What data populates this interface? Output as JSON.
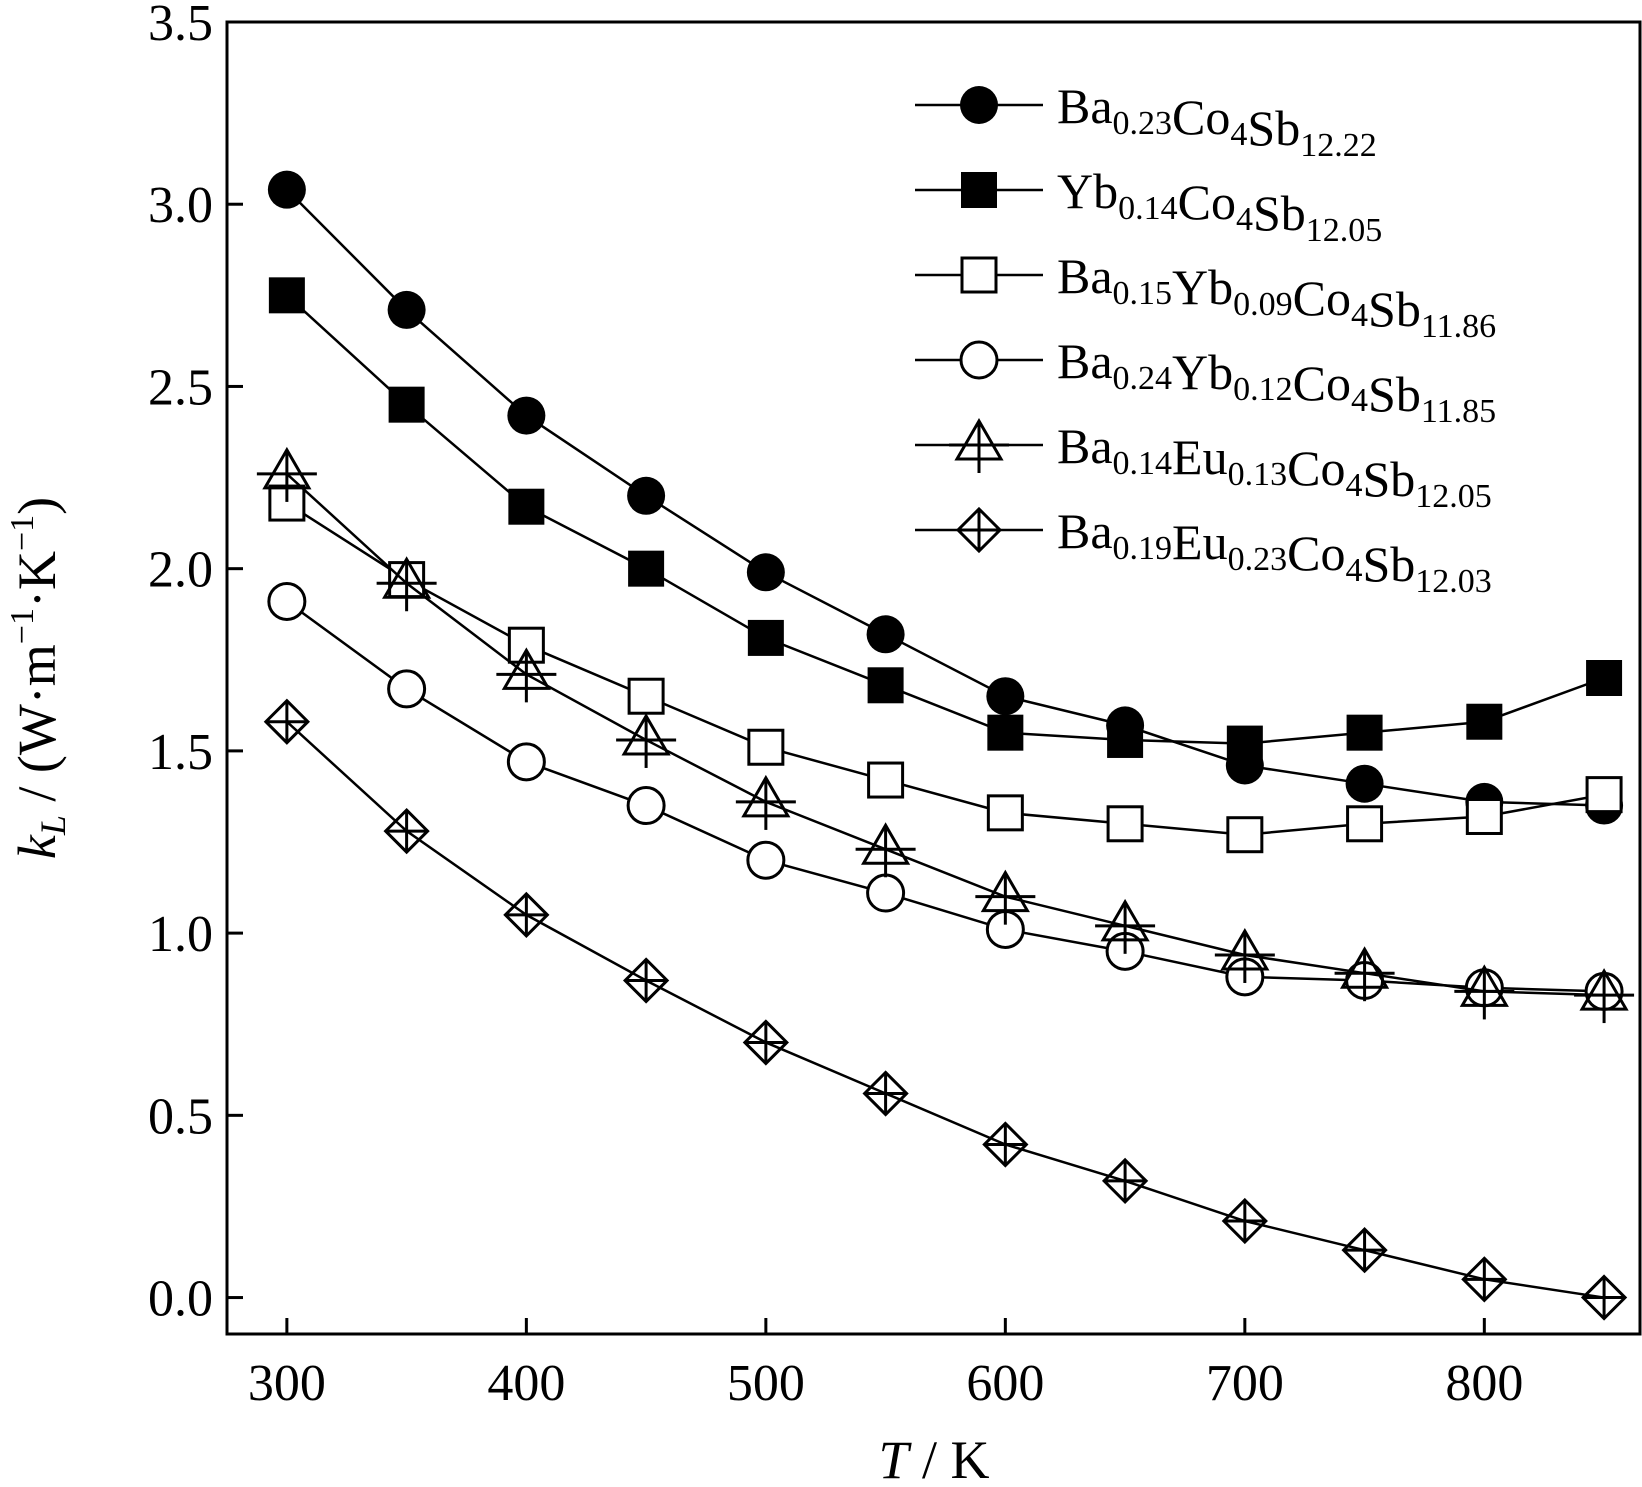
{
  "chart_data": {
    "type": "line",
    "title": "",
    "xlabel_italic": "T",
    "xlabel_rest": " / K",
    "ylabel_italic": "k",
    "ylabel_sub": "L",
    "ylabel_rest": " / (W·m",
    "ylabel_sup1": "−1",
    "ylabel_mid": "·K",
    "ylabel_sup2": "−1",
    "ylabel_end": ")",
    "xlim": [
      275,
      865
    ],
    "ylim": [
      -0.1,
      3.5
    ],
    "xticks": [
      300,
      400,
      500,
      600,
      700,
      800
    ],
    "yticks": [
      0.0,
      0.5,
      1.0,
      1.5,
      2.0,
      2.5,
      3.0,
      3.5
    ],
    "legend_position": "top-right",
    "x": [
      300,
      350,
      400,
      450,
      500,
      550,
      600,
      650,
      700,
      750,
      800,
      850
    ],
    "series": [
      {
        "marker": "filled-circle",
        "legend": {
          "a": "Ba",
          "a_sub": "0.23",
          "b": "Co",
          "b_sub": "4",
          "c": "Sb",
          "c_sub": "12.22"
        },
        "values": [
          3.04,
          2.71,
          2.42,
          2.2,
          1.99,
          1.82,
          1.65,
          1.57,
          1.46,
          1.41,
          1.36,
          1.35
        ]
      },
      {
        "marker": "filled-square",
        "legend": {
          "a": "Yb",
          "a_sub": "0.14",
          "b": "Co",
          "b_sub": "4",
          "c": "Sb",
          "c_sub": "12.05"
        },
        "values": [
          2.75,
          2.45,
          2.17,
          2.0,
          1.81,
          1.68,
          1.55,
          1.53,
          1.52,
          1.55,
          1.58,
          1.7
        ]
      },
      {
        "marker": "open-square",
        "legend": {
          "a": "Ba",
          "a_sub": "0.15",
          "b": "Yb",
          "b_sub": "0.09",
          "c": "Co",
          "c_sub": "4",
          "d": "Sb",
          "d_sub": "11.86"
        },
        "values": [
          2.18,
          1.97,
          1.79,
          1.65,
          1.51,
          1.42,
          1.33,
          1.3,
          1.27,
          1.3,
          1.32,
          1.38
        ]
      },
      {
        "marker": "open-circle",
        "legend": {
          "a": "Ba",
          "a_sub": "0.24",
          "b": "Yb",
          "b_sub": "0.12",
          "c": "Co",
          "c_sub": "4",
          "d": "Sb",
          "d_sub": "11.85"
        },
        "values": [
          1.91,
          1.67,
          1.47,
          1.35,
          1.2,
          1.11,
          1.01,
          0.95,
          0.88,
          0.87,
          0.85,
          0.84
        ]
      },
      {
        "marker": "open-triangle-cross",
        "legend": {
          "a": "Ba",
          "a_sub": "0.14",
          "b": "Eu",
          "b_sub": "0.13",
          "c": "Co",
          "c_sub": "4",
          "d": "Sb",
          "d_sub": "12.05"
        },
        "values": [
          2.26,
          1.96,
          1.71,
          1.53,
          1.36,
          1.23,
          1.1,
          1.02,
          0.94,
          0.89,
          0.84,
          0.83
        ]
      },
      {
        "marker": "open-diamond-cross",
        "legend": {
          "a": "Ba",
          "a_sub": "0.19",
          "b": "Eu",
          "b_sub": "0.23",
          "c": "Co",
          "c_sub": "4",
          "d": "Sb",
          "d_sub": "12.03"
        },
        "values": [
          1.58,
          1.28,
          1.05,
          0.87,
          0.7,
          0.56,
          0.42,
          0.32,
          0.21,
          0.13,
          0.05,
          0.0
        ]
      }
    ]
  }
}
